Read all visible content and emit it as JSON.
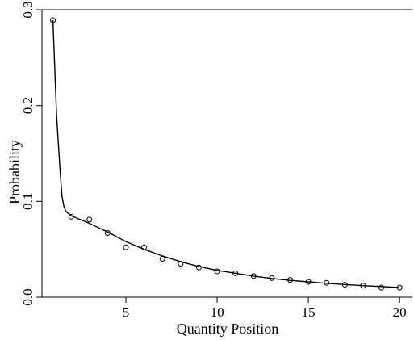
{
  "chart_data": {
    "type": "scatter",
    "xlabel": "Quantity Position",
    "ylabel": "Probability",
    "xlim": [
      0.4,
      20.7
    ],
    "ylim": [
      0.0,
      0.3
    ],
    "x_ticks": [
      5,
      10,
      15,
      20
    ],
    "x_tick_labels": [
      "5",
      "10",
      "15",
      "20"
    ],
    "y_ticks": [
      0.0,
      0.1,
      0.2,
      0.3
    ],
    "y_tick_labels": [
      "0.0",
      "0.1",
      "0.2",
      "0.3"
    ],
    "grid": false,
    "series": [
      {
        "kind": "points",
        "marker": "open-circle",
        "x": [
          1,
          2,
          3,
          4,
          5,
          6,
          7,
          8,
          9,
          10,
          11,
          12,
          13,
          14,
          15,
          16,
          17,
          18,
          19,
          20
        ],
        "y": [
          0.289,
          0.084,
          0.081,
          0.067,
          0.052,
          0.052,
          0.04,
          0.035,
          0.031,
          0.027,
          0.025,
          0.022,
          0.02,
          0.018,
          0.016,
          0.015,
          0.013,
          0.012,
          0.01,
          0.01
        ]
      },
      {
        "kind": "line",
        "x": [
          1,
          1.2,
          1.4,
          1.5,
          1.6,
          1.7,
          1.8,
          2,
          2.5,
          3,
          4,
          5,
          6,
          7,
          8,
          9,
          10,
          11,
          12,
          13,
          14,
          15,
          16,
          17,
          18,
          19,
          20
        ],
        "y": [
          0.289,
          0.19,
          0.13,
          0.105,
          0.095,
          0.09,
          0.088,
          0.085,
          0.081,
          0.077,
          0.068,
          0.058,
          0.05,
          0.043,
          0.037,
          0.032,
          0.028,
          0.025,
          0.022,
          0.0195,
          0.0175,
          0.016,
          0.0145,
          0.0132,
          0.0121,
          0.0111,
          0.0102
        ]
      }
    ]
  }
}
